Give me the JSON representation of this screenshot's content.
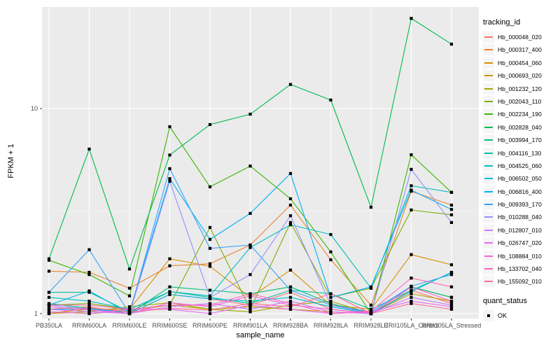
{
  "chart_data": {
    "type": "line",
    "title": "",
    "xlabel": "sample_name",
    "ylabel": "FPKM + 1",
    "y_scale": "log10",
    "y_breaks": [
      1,
      10
    ],
    "y_break_labels": [
      "1",
      "10"
    ],
    "y_minor_breaks": [
      3.162,
      31.62
    ],
    "ylim": [
      0.95,
      31.5
    ],
    "grid": true,
    "panel_color": "#EBEBEB",
    "gridline_color": "#FFFFFF",
    "marker": "black-square",
    "marker_color": "#000000",
    "categories": [
      "PB350LA",
      "RRIM600LA",
      "RRIM600LE",
      "RRIM600SE",
      "RRIM600PE",
      "RRIM901LA",
      "RRIM928BA",
      "RRIM928LA",
      "RRIM928LE",
      "RRII105LA_Control",
      "RRII105LA_Stressed"
    ],
    "legend": {
      "title": "tracking_id",
      "position": "right"
    },
    "quant_legend": {
      "title": "quant_status",
      "items": [
        {
          "label": "OK",
          "marker": "black-square"
        }
      ]
    },
    "series": [
      {
        "name": "Hb_000048_020",
        "color": "#F8766D",
        "values": [
          1.05,
          1.08,
          1.0,
          1.24,
          1.18,
          1.1,
          1.27,
          1.05,
          1.0,
          1.3,
          1.12
        ]
      },
      {
        "name": "Hb_000317_400",
        "color": "#EA8331",
        "values": [
          1.61,
          1.59,
          1.33,
          1.71,
          1.75,
          2.16,
          3.38,
          1.83,
          1.1,
          3.95,
          3.38
        ]
      },
      {
        "name": "Hb_000454_060",
        "color": "#D89000",
        "values": [
          1.0,
          1.05,
          1.05,
          1.85,
          1.7,
          1.2,
          1.63,
          1.1,
          1.05,
          1.94,
          1.73
        ]
      },
      {
        "name": "Hb_000693_020",
        "color": "#C09B00",
        "values": [
          1.02,
          1.0,
          1.03,
          1.1,
          1.05,
          1.08,
          1.05,
          1.02,
          1.0,
          1.25,
          1.15
        ]
      },
      {
        "name": "Hb_001232_120",
        "color": "#A3A500",
        "values": [
          1.0,
          1.02,
          1.08,
          1.13,
          1.05,
          1.02,
          1.1,
          1.15,
          1.0,
          1.35,
          1.2
        ]
      },
      {
        "name": "Hb_002043_110",
        "color": "#7CAE00",
        "values": [
          1.1,
          1.12,
          1.05,
          1.1,
          2.63,
          1.05,
          2.78,
          1.2,
          1.33,
          3.2,
          3.03
        ]
      },
      {
        "name": "Hb_002234_190",
        "color": "#39B600",
        "values": [
          1.82,
          1.55,
          1.22,
          8.15,
          4.15,
          5.24,
          3.63,
          2.0,
          1.0,
          5.95,
          3.9
        ]
      },
      {
        "name": "Hb_002828_040",
        "color": "#00BB4E",
        "values": [
          1.85,
          6.34,
          1.65,
          5.93,
          8.35,
          9.38,
          13.1,
          11.0,
          3.3,
          27.5,
          20.6
        ]
      },
      {
        "name": "Hb_003994_170",
        "color": "#00BF7D",
        "values": [
          1.12,
          1.06,
          1.0,
          1.35,
          1.3,
          1.25,
          1.35,
          1.12,
          1.0,
          1.35,
          1.2
        ]
      },
      {
        "name": "Hb_004116_130",
        "color": "#00C1A3",
        "values": [
          1.27,
          1.27,
          1.02,
          1.28,
          1.2,
          1.12,
          1.3,
          1.25,
          1.05,
          1.3,
          1.58
        ]
      },
      {
        "name": "Hb_004525_060",
        "color": "#00BFC4",
        "values": [
          1.2,
          1.15,
          1.05,
          1.28,
          1.22,
          2.1,
          2.71,
          2.43,
          1.33,
          4.2,
          3.9
        ]
      },
      {
        "name": "Hb_006502_050",
        "color": "#00BAE0",
        "values": [
          1.1,
          1.29,
          1.0,
          1.24,
          1.18,
          1.15,
          1.2,
          1.08,
          1.0,
          1.28,
          1.59
        ]
      },
      {
        "name": "Hb_006816_400",
        "color": "#00B0F6",
        "values": [
          1.05,
          1.05,
          1.02,
          4.55,
          2.3,
          3.08,
          4.82,
          1.2,
          1.35,
          4.0,
          3.22
        ]
      },
      {
        "name": "Hb_009393_170",
        "color": "#35A2FF",
        "values": [
          1.27,
          2.05,
          1.0,
          5.09,
          2.08,
          2.16,
          1.3,
          1.1,
          1.02,
          1.36,
          1.55
        ]
      },
      {
        "name": "Hb_010288_040",
        "color": "#9590FF",
        "values": [
          1.1,
          1.05,
          1.0,
          4.42,
          1.2,
          1.55,
          3.0,
          1.1,
          1.0,
          5.05,
          2.78
        ]
      },
      {
        "name": "Hb_012807_010",
        "color": "#C77CFF",
        "values": [
          1.05,
          1.02,
          1.0,
          1.08,
          1.12,
          1.05,
          1.15,
          1.02,
          1.0,
          1.2,
          1.1
        ]
      },
      {
        "name": "Hb_026747_020",
        "color": "#E76BF3",
        "values": [
          1.02,
          1.0,
          1.05,
          1.05,
          1.0,
          1.1,
          1.05,
          1.0,
          1.02,
          1.15,
          1.08
        ]
      },
      {
        "name": "Hb_108884_010",
        "color": "#FA62DB",
        "values": [
          1.08,
          1.04,
          1.0,
          1.13,
          1.08,
          1.22,
          1.1,
          1.05,
          1.0,
          1.35,
          1.15
        ]
      },
      {
        "name": "Hb_133702_040",
        "color": "#FF62BC",
        "values": [
          1.1,
          1.1,
          1.05,
          1.1,
          1.1,
          1.25,
          1.12,
          1.0,
          1.03,
          1.49,
          1.35
        ]
      },
      {
        "name": "Hb_155092_010",
        "color": "#FF6A98",
        "values": [
          1.0,
          1.07,
          1.02,
          1.06,
          1.04,
          1.12,
          1.08,
          1.25,
          1.0,
          1.12,
          1.05
        ]
      }
    ]
  }
}
